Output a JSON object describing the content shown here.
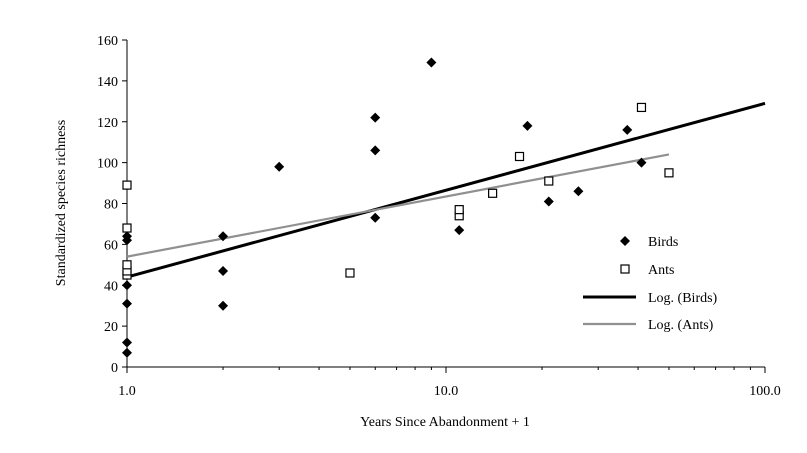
{
  "chart_data": {
    "type": "scatter",
    "xlabel": "Years Since Abandonment + 1",
    "ylabel": "Standardized species richness",
    "x_scale": "log",
    "xlim": [
      1,
      100
    ],
    "ylim": [
      0,
      160
    ],
    "x_ticks": [
      1,
      10,
      100
    ],
    "x_tick_labels": [
      "1.0",
      "10.0",
      "100.0"
    ],
    "y_ticks": [
      0,
      20,
      40,
      60,
      80,
      100,
      120,
      140,
      160
    ],
    "y_tick_labels": [
      "0",
      "20",
      "40",
      "60",
      "80",
      "100",
      "120",
      "140",
      "160"
    ],
    "grid": false,
    "legend_position": "right",
    "series": [
      {
        "name": "Birds",
        "marker": "filled-diamond",
        "color": "#000000",
        "points": [
          [
            1,
            7
          ],
          [
            1,
            12
          ],
          [
            1,
            31
          ],
          [
            1,
            40
          ],
          [
            1,
            62
          ],
          [
            1,
            64
          ],
          [
            2,
            30
          ],
          [
            2,
            47
          ],
          [
            2,
            64
          ],
          [
            3,
            98
          ],
          [
            6,
            73
          ],
          [
            6,
            106
          ],
          [
            6,
            122
          ],
          [
            9,
            149
          ],
          [
            11,
            67
          ],
          [
            18,
            118
          ],
          [
            21,
            81
          ],
          [
            26,
            86
          ],
          [
            37,
            116
          ],
          [
            41,
            100
          ]
        ]
      },
      {
        "name": "Ants",
        "marker": "open-square",
        "color": "#000000",
        "points": [
          [
            1,
            45
          ],
          [
            1,
            47
          ],
          [
            1,
            50
          ],
          [
            1,
            68
          ],
          [
            1,
            89
          ],
          [
            5,
            46
          ],
          [
            11,
            74
          ],
          [
            11,
            77
          ],
          [
            14,
            85
          ],
          [
            17,
            103
          ],
          [
            21,
            91
          ],
          [
            41,
            127
          ],
          [
            50,
            95
          ]
        ]
      }
    ],
    "trendlines": [
      {
        "name": "Log. (Birds)",
        "type": "logarithmic",
        "color": "#000000",
        "x_range": [
          1,
          100
        ],
        "y_at_x_start": 44,
        "y_at_x_end": 129
      },
      {
        "name": "Log. (Ants)",
        "type": "logarithmic",
        "color": "#909090",
        "x_range": [
          1,
          50
        ],
        "y_at_x_start": 54,
        "y_at_x_end": 104
      }
    ]
  }
}
